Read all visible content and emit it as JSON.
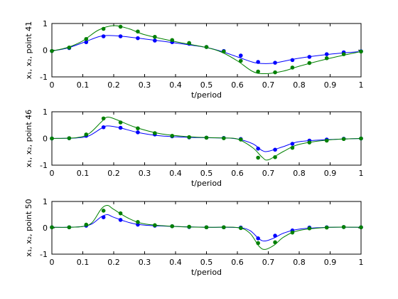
{
  "chart_data": [
    {
      "type": "line",
      "xlabel": "t/period",
      "ylabel": "x₁, x₂, point 41",
      "xlim": [
        0,
        1
      ],
      "ylim": [
        -1,
        1
      ],
      "xticks": [
        0,
        0.1,
        0.2,
        0.3,
        0.4,
        0.5,
        0.6,
        0.7,
        0.8,
        0.9,
        1
      ],
      "xtick_labels": [
        "0",
        "0.1",
        "0.2",
        "0.3",
        "0.4",
        "0.5",
        "0.6",
        "0.7",
        "0.8",
        "0.9",
        "1"
      ],
      "yticks": [
        -1,
        0,
        1
      ],
      "ytick_labels": [
        "-1",
        "0",
        "1"
      ],
      "grid": false,
      "series": [
        {
          "color": "#0000ff",
          "line": [
            [
              0,
              -0.03
            ],
            [
              0.05,
              0.08
            ],
            [
              0.1,
              0.28
            ],
            [
              0.15,
              0.5
            ],
            [
              0.18,
              0.55
            ],
            [
              0.22,
              0.53
            ],
            [
              0.3,
              0.42
            ],
            [
              0.4,
              0.27
            ],
            [
              0.5,
              0.1
            ],
            [
              0.55,
              -0.05
            ],
            [
              0.6,
              -0.25
            ],
            [
              0.65,
              -0.45
            ],
            [
              0.68,
              -0.5
            ],
            [
              0.72,
              -0.48
            ],
            [
              0.8,
              -0.3
            ],
            [
              0.9,
              -0.15
            ],
            [
              1,
              -0.05
            ]
          ],
          "markers": [
            [
              0,
              -0.03
            ],
            [
              0.056,
              0.08
            ],
            [
              0.111,
              0.3
            ],
            [
              0.167,
              0.52
            ],
            [
              0.222,
              0.52
            ],
            [
              0.278,
              0.45
            ],
            [
              0.333,
              0.36
            ],
            [
              0.389,
              0.3
            ],
            [
              0.444,
              0.24
            ],
            [
              0.5,
              0.12
            ],
            [
              0.556,
              -0.03
            ],
            [
              0.611,
              -0.2
            ],
            [
              0.667,
              -0.44
            ],
            [
              0.722,
              -0.47
            ],
            [
              0.778,
              -0.37
            ],
            [
              0.833,
              -0.25
            ],
            [
              0.889,
              -0.15
            ],
            [
              0.944,
              -0.08
            ],
            [
              1,
              -0.04
            ]
          ]
        },
        {
          "color": "#008000",
          "line": [
            [
              0,
              -0.03
            ],
            [
              0.05,
              0.1
            ],
            [
              0.1,
              0.35
            ],
            [
              0.15,
              0.75
            ],
            [
              0.2,
              0.92
            ],
            [
              0.25,
              0.8
            ],
            [
              0.3,
              0.58
            ],
            [
              0.4,
              0.32
            ],
            [
              0.5,
              0.1
            ],
            [
              0.55,
              -0.08
            ],
            [
              0.6,
              -0.4
            ],
            [
              0.65,
              -0.8
            ],
            [
              0.69,
              -0.88
            ],
            [
              0.75,
              -0.78
            ],
            [
              0.8,
              -0.6
            ],
            [
              0.9,
              -0.3
            ],
            [
              1,
              -0.05
            ]
          ],
          "markers": [
            [
              0,
              -0.03
            ],
            [
              0.056,
              0.1
            ],
            [
              0.111,
              0.42
            ],
            [
              0.167,
              0.8
            ],
            [
              0.222,
              0.88
            ],
            [
              0.278,
              0.7
            ],
            [
              0.333,
              0.5
            ],
            [
              0.389,
              0.38
            ],
            [
              0.444,
              0.27
            ],
            [
              0.5,
              0.12
            ],
            [
              0.556,
              -0.05
            ],
            [
              0.611,
              -0.4
            ],
            [
              0.667,
              -0.8
            ],
            [
              0.722,
              -0.83
            ],
            [
              0.778,
              -0.65
            ],
            [
              0.833,
              -0.48
            ],
            [
              0.889,
              -0.3
            ],
            [
              0.944,
              -0.15
            ],
            [
              1,
              -0.05
            ]
          ]
        }
      ]
    },
    {
      "type": "line",
      "xlabel": "t/period",
      "ylabel": "x₁, x₂, point 46",
      "xlim": [
        0,
        1
      ],
      "ylim": [
        -1,
        1
      ],
      "xticks": [
        0,
        0.1,
        0.2,
        0.3,
        0.4,
        0.5,
        0.6,
        0.7,
        0.8,
        0.9,
        1
      ],
      "xtick_labels": [
        "0",
        "0.1",
        "0.2",
        "0.3",
        "0.4",
        "0.5",
        "0.6",
        "0.7",
        "0.8",
        "0.9",
        "1"
      ],
      "yticks": [
        -1,
        0,
        1
      ],
      "ytick_labels": [
        "-1",
        "0",
        "1"
      ],
      "grid": false,
      "series": [
        {
          "color": "#0000ff",
          "line": [
            [
              0,
              0
            ],
            [
              0.08,
              0.02
            ],
            [
              0.12,
              0.1
            ],
            [
              0.16,
              0.38
            ],
            [
              0.18,
              0.47
            ],
            [
              0.22,
              0.4
            ],
            [
              0.28,
              0.22
            ],
            [
              0.35,
              0.1
            ],
            [
              0.45,
              0.04
            ],
            [
              0.55,
              0.02
            ],
            [
              0.6,
              -0.02
            ],
            [
              0.65,
              -0.2
            ],
            [
              0.68,
              -0.45
            ],
            [
              0.7,
              -0.48
            ],
            [
              0.75,
              -0.3
            ],
            [
              0.8,
              -0.12
            ],
            [
              0.9,
              -0.04
            ],
            [
              1,
              0
            ]
          ],
          "markers": [
            [
              0,
              0
            ],
            [
              0.056,
              0.01
            ],
            [
              0.111,
              0.1
            ],
            [
              0.167,
              0.42
            ],
            [
              0.222,
              0.4
            ],
            [
              0.278,
              0.23
            ],
            [
              0.333,
              0.15
            ],
            [
              0.389,
              0.08
            ],
            [
              0.444,
              0.04
            ],
            [
              0.5,
              0.03
            ],
            [
              0.556,
              0.02
            ],
            [
              0.611,
              -0.02
            ],
            [
              0.667,
              -0.38
            ],
            [
              0.722,
              -0.42
            ],
            [
              0.778,
              -0.2
            ],
            [
              0.833,
              -0.08
            ],
            [
              0.889,
              -0.04
            ],
            [
              0.944,
              -0.01
            ],
            [
              1,
              0
            ]
          ]
        },
        {
          "color": "#008000",
          "line": [
            [
              0,
              0
            ],
            [
              0.08,
              0.03
            ],
            [
              0.12,
              0.18
            ],
            [
              0.16,
              0.62
            ],
            [
              0.18,
              0.8
            ],
            [
              0.21,
              0.7
            ],
            [
              0.27,
              0.42
            ],
            [
              0.35,
              0.18
            ],
            [
              0.45,
              0.06
            ],
            [
              0.55,
              0.02
            ],
            [
              0.6,
              -0.02
            ],
            [
              0.65,
              -0.35
            ],
            [
              0.68,
              -0.7
            ],
            [
              0.7,
              -0.8
            ],
            [
              0.75,
              -0.48
            ],
            [
              0.8,
              -0.22
            ],
            [
              0.9,
              -0.05
            ],
            [
              1,
              0
            ]
          ],
          "markers": [
            [
              0,
              0
            ],
            [
              0.056,
              0.01
            ],
            [
              0.111,
              0.15
            ],
            [
              0.167,
              0.75
            ],
            [
              0.222,
              0.6
            ],
            [
              0.278,
              0.38
            ],
            [
              0.333,
              0.2
            ],
            [
              0.389,
              0.1
            ],
            [
              0.444,
              0.05
            ],
            [
              0.5,
              0.03
            ],
            [
              0.556,
              0.01
            ],
            [
              0.611,
              -0.04
            ],
            [
              0.667,
              -0.72
            ],
            [
              0.722,
              -0.7
            ],
            [
              0.778,
              -0.35
            ],
            [
              0.833,
              -0.15
            ],
            [
              0.889,
              -0.08
            ],
            [
              0.944,
              -0.02
            ],
            [
              1,
              0
            ]
          ]
        }
      ]
    },
    {
      "type": "line",
      "xlabel": "t/period",
      "ylabel": "x₁, x₂, point 50",
      "xlim": [
        0,
        1
      ],
      "ylim": [
        -1,
        1
      ],
      "xticks": [
        0,
        0.1,
        0.2,
        0.3,
        0.4,
        0.5,
        0.6,
        0.7,
        0.8,
        0.9,
        1
      ],
      "xtick_labels": [
        "0",
        "0.1",
        "0.2",
        "0.3",
        "0.4",
        "0.5",
        "0.6",
        "0.7",
        "0.8",
        "0.9",
        "1"
      ],
      "yticks": [
        -1,
        0,
        1
      ],
      "ytick_labels": [
        "-1",
        "0",
        "1"
      ],
      "grid": false,
      "series": [
        {
          "color": "#0000ff",
          "line": [
            [
              0,
              0.02
            ],
            [
              0.05,
              0.02
            ],
            [
              0.1,
              0.05
            ],
            [
              0.13,
              0.15
            ],
            [
              0.16,
              0.42
            ],
            [
              0.18,
              0.5
            ],
            [
              0.2,
              0.4
            ],
            [
              0.25,
              0.2
            ],
            [
              0.3,
              0.1
            ],
            [
              0.4,
              0.05
            ],
            [
              0.5,
              0.02
            ],
            [
              0.6,
              0.01
            ],
            [
              0.64,
              -0.1
            ],
            [
              0.67,
              -0.42
            ],
            [
              0.69,
              -0.5
            ],
            [
              0.72,
              -0.38
            ],
            [
              0.75,
              -0.2
            ],
            [
              0.8,
              -0.05
            ],
            [
              0.9,
              0.02
            ],
            [
              1,
              0.02
            ]
          ],
          "markers": [
            [
              0,
              0.02
            ],
            [
              0.056,
              0.02
            ],
            [
              0.111,
              0.08
            ],
            [
              0.167,
              0.4
            ],
            [
              0.222,
              0.3
            ],
            [
              0.278,
              0.12
            ],
            [
              0.333,
              0.08
            ],
            [
              0.389,
              0.06
            ],
            [
              0.444,
              0.03
            ],
            [
              0.5,
              0.02
            ],
            [
              0.556,
              0.02
            ],
            [
              0.611,
              0.01
            ],
            [
              0.667,
              -0.4
            ],
            [
              0.722,
              -0.3
            ],
            [
              0.778,
              -0.1
            ],
            [
              0.833,
              0.01
            ],
            [
              0.889,
              0.02
            ],
            [
              0.944,
              0.03
            ],
            [
              1,
              0.02
            ]
          ]
        },
        {
          "color": "#008000",
          "line": [
            [
              0,
              0.02
            ],
            [
              0.05,
              0.02
            ],
            [
              0.1,
              0.05
            ],
            [
              0.13,
              0.2
            ],
            [
              0.16,
              0.72
            ],
            [
              0.18,
              0.85
            ],
            [
              0.2,
              0.7
            ],
            [
              0.25,
              0.35
            ],
            [
              0.3,
              0.15
            ],
            [
              0.4,
              0.05
            ],
            [
              0.5,
              0.02
            ],
            [
              0.6,
              0.01
            ],
            [
              0.64,
              -0.2
            ],
            [
              0.67,
              -0.7
            ],
            [
              0.69,
              -0.82
            ],
            [
              0.72,
              -0.65
            ],
            [
              0.75,
              -0.35
            ],
            [
              0.8,
              -0.1
            ],
            [
              0.9,
              0.02
            ],
            [
              1,
              0.02
            ]
          ],
          "markers": [
            [
              0,
              0.02
            ],
            [
              0.056,
              0.02
            ],
            [
              0.111,
              0.12
            ],
            [
              0.167,
              0.65
            ],
            [
              0.222,
              0.55
            ],
            [
              0.278,
              0.22
            ],
            [
              0.333,
              0.1
            ],
            [
              0.389,
              0.06
            ],
            [
              0.444,
              0.04
            ],
            [
              0.5,
              0.02
            ],
            [
              0.556,
              0.02
            ],
            [
              0.611,
              -0.01
            ],
            [
              0.667,
              -0.58
            ],
            [
              0.722,
              -0.55
            ],
            [
              0.778,
              -0.18
            ],
            [
              0.833,
              -0.02
            ],
            [
              0.889,
              0.01
            ],
            [
              0.944,
              0.03
            ],
            [
              1,
              0.02
            ]
          ]
        }
      ]
    }
  ]
}
